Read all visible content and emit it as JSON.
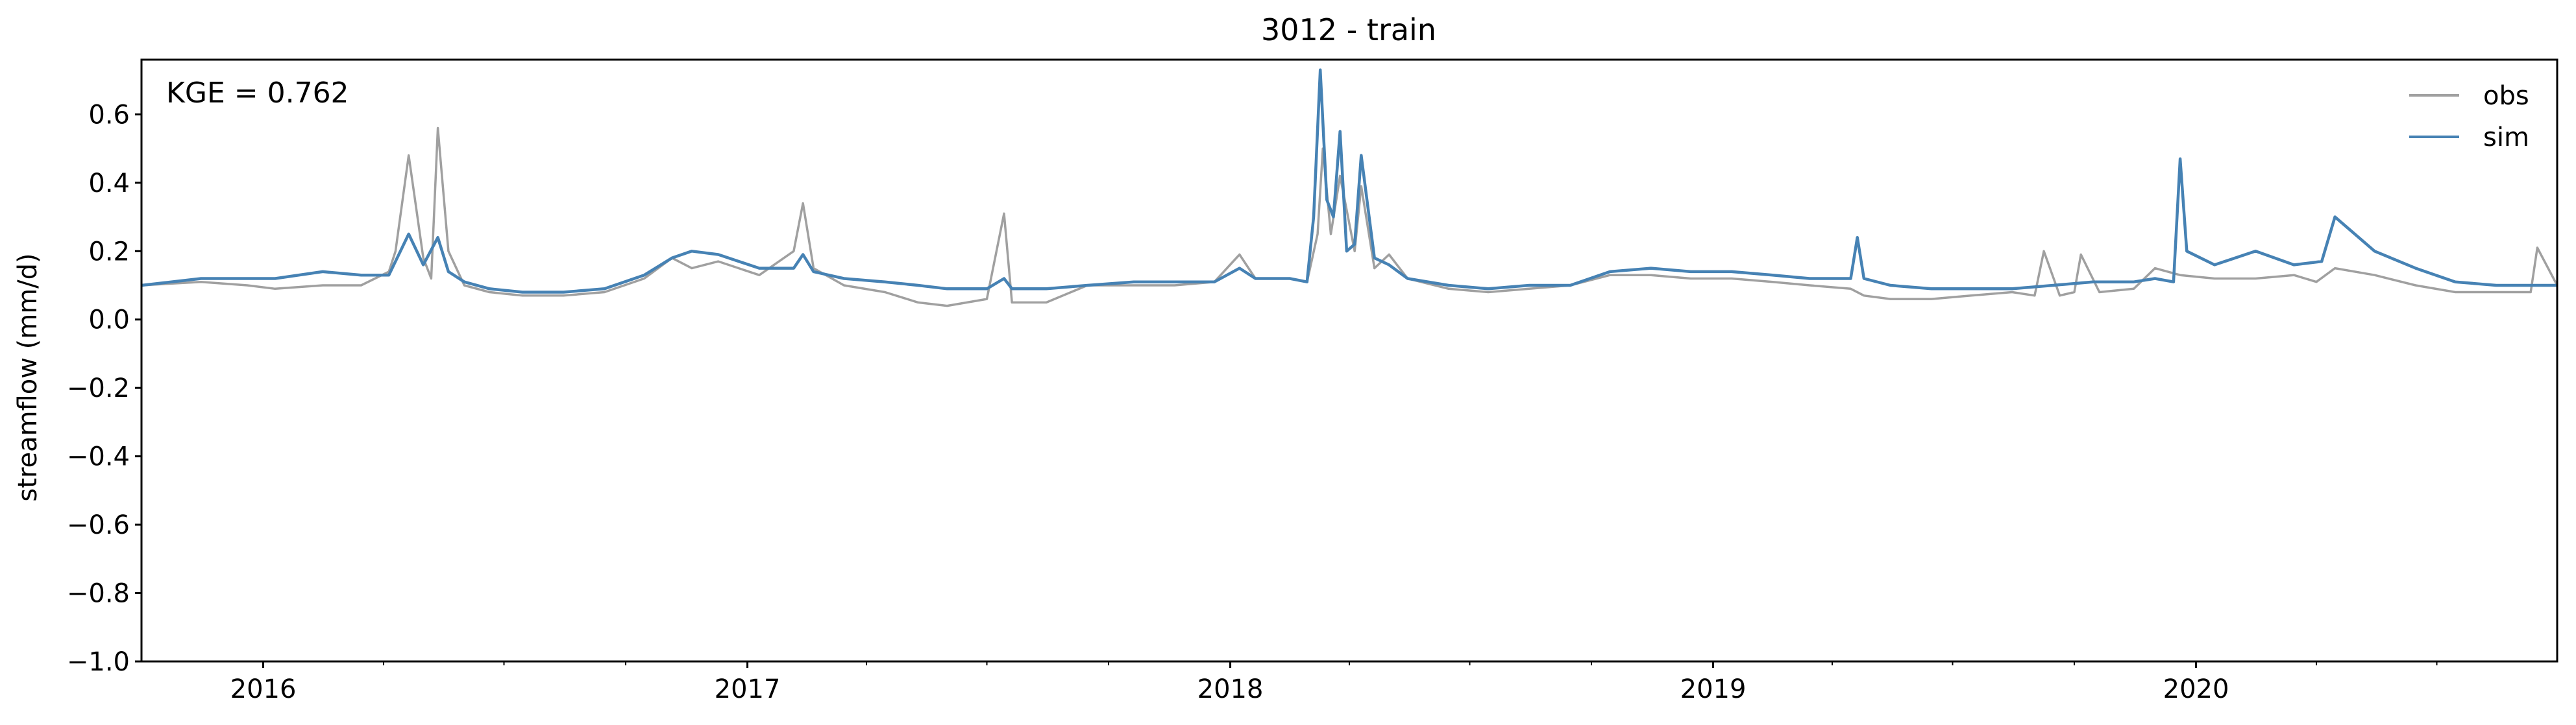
{
  "chart_data": {
    "type": "line",
    "title": "3012 - train",
    "xlabel": "",
    "ylabel": "streamflow (mm/d)",
    "annotation": "KGE = 0.762",
    "xlim": [
      "2015-10-01",
      "2020-09-30"
    ],
    "ylim": [
      -1.0,
      0.76
    ],
    "x_ticks": [
      "2016-01-01",
      "2017-01-01",
      "2018-01-01",
      "2019-01-01",
      "2020-01-01"
    ],
    "x_tick_labels": [
      "2016",
      "2017",
      "2018",
      "2019",
      "2020"
    ],
    "y_ticks": [
      0.6,
      0.4,
      0.2,
      0.0,
      -0.2,
      -0.4,
      -0.6,
      -0.8,
      -1.0
    ],
    "y_tick_labels": [
      "0.6",
      "0.4",
      "0.2",
      "0.0",
      "−0.2",
      "−0.4",
      "−0.6",
      "−0.8",
      "−1.0"
    ],
    "grid": false,
    "legend_position": "top-right",
    "colors": {
      "obs": "#a0a0a0",
      "sim": "#4682b4"
    },
    "series": [
      {
        "name": "obs",
        "x": [
          "2015-10-01",
          "2015-11-15",
          "2015-12-20",
          "2016-01-10",
          "2016-02-15",
          "2016-03-15",
          "2016-04-05",
          "2016-04-10",
          "2016-04-20",
          "2016-05-01",
          "2016-05-07",
          "2016-05-12",
          "2016-05-20",
          "2016-06-01",
          "2016-06-20",
          "2016-07-15",
          "2016-08-15",
          "2016-09-15",
          "2016-10-15",
          "2016-11-05",
          "2016-11-20",
          "2016-12-10",
          "2017-01-10",
          "2017-02-05",
          "2017-02-12",
          "2017-02-20",
          "2017-03-15",
          "2017-04-15",
          "2017-05-10",
          "2017-06-01",
          "2017-07-01",
          "2017-07-14",
          "2017-07-20",
          "2017-08-15",
          "2017-09-15",
          "2017-10-20",
          "2017-11-20",
          "2017-12-20",
          "2018-01-08",
          "2018-01-20",
          "2018-02-15",
          "2018-02-28",
          "2018-03-08",
          "2018-03-12",
          "2018-03-18",
          "2018-03-25",
          "2018-04-05",
          "2018-04-10",
          "2018-04-20",
          "2018-05-01",
          "2018-05-15",
          "2018-06-15",
          "2018-07-15",
          "2018-08-15",
          "2018-09-15",
          "2018-10-15",
          "2018-11-15",
          "2018-12-15",
          "2019-01-15",
          "2019-02-15",
          "2019-03-15",
          "2019-04-15",
          "2019-04-25",
          "2019-05-15",
          "2019-06-15",
          "2019-07-15",
          "2019-08-15",
          "2019-09-01",
          "2019-09-08",
          "2019-09-20",
          "2019-10-01",
          "2019-10-06",
          "2019-10-20",
          "2019-11-15",
          "2019-12-01",
          "2019-12-20",
          "2020-01-15",
          "2020-02-15",
          "2020-03-15",
          "2020-04-01",
          "2020-04-15",
          "2020-05-15",
          "2020-06-15",
          "2020-07-15",
          "2020-08-15",
          "2020-09-10",
          "2020-09-15",
          "2020-09-30"
        ],
        "values": [
          0.1,
          0.11,
          0.1,
          0.09,
          0.1,
          0.1,
          0.14,
          0.2,
          0.48,
          0.18,
          0.12,
          0.56,
          0.2,
          0.1,
          0.08,
          0.07,
          0.07,
          0.08,
          0.12,
          0.18,
          0.15,
          0.17,
          0.13,
          0.2,
          0.34,
          0.15,
          0.1,
          0.08,
          0.05,
          0.04,
          0.06,
          0.31,
          0.05,
          0.05,
          0.1,
          0.1,
          0.1,
          0.11,
          0.19,
          0.12,
          0.12,
          0.11,
          0.25,
          0.5,
          0.25,
          0.42,
          0.2,
          0.39,
          0.15,
          0.19,
          0.12,
          0.09,
          0.08,
          0.09,
          0.1,
          0.13,
          0.13,
          0.12,
          0.12,
          0.11,
          0.1,
          0.09,
          0.07,
          0.06,
          0.06,
          0.07,
          0.08,
          0.07,
          0.2,
          0.07,
          0.08,
          0.19,
          0.08,
          0.09,
          0.15,
          0.13,
          0.12,
          0.12,
          0.13,
          0.11,
          0.15,
          0.13,
          0.1,
          0.08,
          0.08,
          0.08,
          0.21,
          0.1
        ]
      },
      {
        "name": "sim",
        "x": [
          "2015-10-01",
          "2015-11-15",
          "2015-12-20",
          "2016-01-10",
          "2016-02-15",
          "2016-03-15",
          "2016-04-05",
          "2016-04-20",
          "2016-05-01",
          "2016-05-12",
          "2016-05-20",
          "2016-06-01",
          "2016-06-20",
          "2016-07-15",
          "2016-08-15",
          "2016-09-15",
          "2016-10-15",
          "2016-11-05",
          "2016-11-20",
          "2016-12-10",
          "2017-01-10",
          "2017-02-05",
          "2017-02-12",
          "2017-02-20",
          "2017-03-15",
          "2017-04-15",
          "2017-05-10",
          "2017-06-01",
          "2017-07-01",
          "2017-07-14",
          "2017-07-20",
          "2017-08-15",
          "2017-09-15",
          "2017-10-20",
          "2017-11-20",
          "2017-12-20",
          "2018-01-08",
          "2018-01-20",
          "2018-02-15",
          "2018-02-28",
          "2018-03-05",
          "2018-03-10",
          "2018-03-15",
          "2018-03-20",
          "2018-03-25",
          "2018-03-30",
          "2018-04-05",
          "2018-04-10",
          "2018-04-20",
          "2018-05-01",
          "2018-05-15",
          "2018-06-15",
          "2018-07-15",
          "2018-08-15",
          "2018-09-15",
          "2018-10-15",
          "2018-11-15",
          "2018-12-15",
          "2019-01-15",
          "2019-02-15",
          "2019-03-15",
          "2019-04-15",
          "2019-04-20",
          "2019-04-25",
          "2019-05-15",
          "2019-06-15",
          "2019-07-15",
          "2019-08-15",
          "2019-09-15",
          "2019-10-15",
          "2019-11-15",
          "2019-12-01",
          "2019-12-15",
          "2019-12-20",
          "2019-12-25",
          "2020-01-15",
          "2020-02-15",
          "2020-03-15",
          "2020-04-05",
          "2020-04-15",
          "2020-05-15",
          "2020-06-15",
          "2020-07-15",
          "2020-08-15",
          "2020-09-15",
          "2020-09-30"
        ],
        "values": [
          0.1,
          0.12,
          0.12,
          0.12,
          0.14,
          0.13,
          0.13,
          0.25,
          0.16,
          0.24,
          0.14,
          0.11,
          0.09,
          0.08,
          0.08,
          0.09,
          0.13,
          0.18,
          0.2,
          0.19,
          0.15,
          0.15,
          0.19,
          0.14,
          0.12,
          0.11,
          0.1,
          0.09,
          0.09,
          0.12,
          0.09,
          0.09,
          0.1,
          0.11,
          0.11,
          0.11,
          0.15,
          0.12,
          0.12,
          0.11,
          0.3,
          0.73,
          0.35,
          0.3,
          0.55,
          0.2,
          0.22,
          0.48,
          0.18,
          0.16,
          0.12,
          0.1,
          0.09,
          0.1,
          0.1,
          0.14,
          0.15,
          0.14,
          0.14,
          0.13,
          0.12,
          0.12,
          0.24,
          0.12,
          0.1,
          0.09,
          0.09,
          0.09,
          0.1,
          0.11,
          0.11,
          0.12,
          0.11,
          0.47,
          0.2,
          0.16,
          0.2,
          0.16,
          0.17,
          0.3,
          0.2,
          0.15,
          0.11,
          0.1,
          0.1,
          0.1
        ]
      }
    ]
  }
}
